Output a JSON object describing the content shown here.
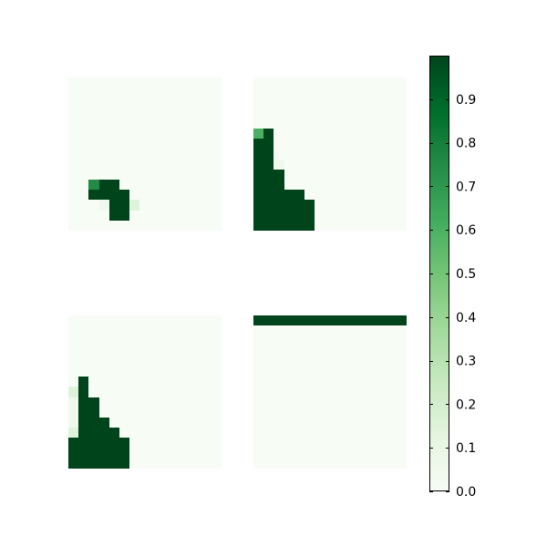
{
  "chart_data": {
    "type": "heatmap",
    "grid_size": 15,
    "colormap": "Greens",
    "colorbar": {
      "vmin": 0.0,
      "vmax": 1.0,
      "tick_values": [
        0.0,
        0.1,
        0.2,
        0.3,
        0.4,
        0.5,
        0.6,
        0.7,
        0.8,
        0.9
      ],
      "tick_labels": [
        "0.0",
        "0.1",
        "0.2",
        "0.3",
        "0.4",
        "0.5",
        "0.6",
        "0.7",
        "0.8",
        "0.9"
      ]
    },
    "panels": [
      {
        "name": "top-left",
        "cells": [
          {
            "row": 10,
            "col": 2,
            "value": 0.75
          },
          {
            "row": 10,
            "col": 3,
            "value": 1.0
          },
          {
            "row": 10,
            "col": 4,
            "value": 1.0
          },
          {
            "row": 11,
            "col": 2,
            "value": 1.0
          },
          {
            "row": 11,
            "col": 3,
            "value": 1.0
          },
          {
            "row": 11,
            "col": 4,
            "value": 1.0
          },
          {
            "row": 11,
            "col": 5,
            "value": 1.0
          },
          {
            "row": 12,
            "col": 3,
            "value": 0.05
          },
          {
            "row": 12,
            "col": 4,
            "value": 1.0
          },
          {
            "row": 12,
            "col": 5,
            "value": 1.0
          },
          {
            "row": 12,
            "col": 6,
            "value": 0.15
          },
          {
            "row": 13,
            "col": 4,
            "value": 1.0
          },
          {
            "row": 13,
            "col": 5,
            "value": 1.0
          }
        ]
      },
      {
        "name": "top-right",
        "cells": [
          {
            "row": 5,
            "col": 0,
            "value": 0.6
          },
          {
            "row": 5,
            "col": 1,
            "value": 1.0
          },
          {
            "row": 6,
            "col": 0,
            "value": 1.0
          },
          {
            "row": 6,
            "col": 1,
            "value": 1.0
          },
          {
            "row": 7,
            "col": 0,
            "value": 1.0
          },
          {
            "row": 7,
            "col": 1,
            "value": 1.0
          },
          {
            "row": 8,
            "col": 0,
            "value": 1.0
          },
          {
            "row": 8,
            "col": 1,
            "value": 1.0
          },
          {
            "row": 8,
            "col": 2,
            "value": 0.05
          },
          {
            "row": 9,
            "col": 0,
            "value": 1.0
          },
          {
            "row": 9,
            "col": 1,
            "value": 1.0
          },
          {
            "row": 9,
            "col": 2,
            "value": 1.0
          },
          {
            "row": 10,
            "col": 0,
            "value": 1.0
          },
          {
            "row": 10,
            "col": 1,
            "value": 1.0
          },
          {
            "row": 10,
            "col": 2,
            "value": 1.0
          },
          {
            "row": 11,
            "col": 0,
            "value": 1.0
          },
          {
            "row": 11,
            "col": 1,
            "value": 1.0
          },
          {
            "row": 11,
            "col": 2,
            "value": 1.0
          },
          {
            "row": 11,
            "col": 3,
            "value": 1.0
          },
          {
            "row": 11,
            "col": 4,
            "value": 1.0
          },
          {
            "row": 12,
            "col": 0,
            "value": 1.0
          },
          {
            "row": 12,
            "col": 1,
            "value": 1.0
          },
          {
            "row": 12,
            "col": 2,
            "value": 1.0
          },
          {
            "row": 12,
            "col": 3,
            "value": 1.0
          },
          {
            "row": 12,
            "col": 4,
            "value": 1.0
          },
          {
            "row": 12,
            "col": 5,
            "value": 1.0
          },
          {
            "row": 13,
            "col": 0,
            "value": 1.0
          },
          {
            "row": 13,
            "col": 1,
            "value": 1.0
          },
          {
            "row": 13,
            "col": 2,
            "value": 1.0
          },
          {
            "row": 13,
            "col": 3,
            "value": 1.0
          },
          {
            "row": 13,
            "col": 4,
            "value": 1.0
          },
          {
            "row": 13,
            "col": 5,
            "value": 1.0
          },
          {
            "row": 14,
            "col": 0,
            "value": 1.0
          },
          {
            "row": 14,
            "col": 1,
            "value": 1.0
          },
          {
            "row": 14,
            "col": 2,
            "value": 1.0
          },
          {
            "row": 14,
            "col": 3,
            "value": 1.0
          },
          {
            "row": 14,
            "col": 4,
            "value": 1.0
          },
          {
            "row": 14,
            "col": 5,
            "value": 1.0
          }
        ]
      },
      {
        "name": "bottom-left",
        "cells": [
          {
            "row": 6,
            "col": 1,
            "value": 1.0
          },
          {
            "row": 7,
            "col": 0,
            "value": 0.15
          },
          {
            "row": 7,
            "col": 1,
            "value": 1.0
          },
          {
            "row": 8,
            "col": 0,
            "value": 0.05
          },
          {
            "row": 8,
            "col": 1,
            "value": 1.0
          },
          {
            "row": 8,
            "col": 2,
            "value": 1.0
          },
          {
            "row": 9,
            "col": 0,
            "value": 0.05
          },
          {
            "row": 9,
            "col": 1,
            "value": 1.0
          },
          {
            "row": 9,
            "col": 2,
            "value": 1.0
          },
          {
            "row": 10,
            "col": 0,
            "value": 0.05
          },
          {
            "row": 10,
            "col": 1,
            "value": 1.0
          },
          {
            "row": 10,
            "col": 2,
            "value": 1.0
          },
          {
            "row": 10,
            "col": 3,
            "value": 1.0
          },
          {
            "row": 11,
            "col": 0,
            "value": 0.15
          },
          {
            "row": 11,
            "col": 1,
            "value": 1.0
          },
          {
            "row": 11,
            "col": 2,
            "value": 1.0
          },
          {
            "row": 11,
            "col": 3,
            "value": 1.0
          },
          {
            "row": 11,
            "col": 4,
            "value": 1.0
          },
          {
            "row": 12,
            "col": 0,
            "value": 1.0
          },
          {
            "row": 12,
            "col": 1,
            "value": 1.0
          },
          {
            "row": 12,
            "col": 2,
            "value": 1.0
          },
          {
            "row": 12,
            "col": 3,
            "value": 1.0
          },
          {
            "row": 12,
            "col": 4,
            "value": 1.0
          },
          {
            "row": 12,
            "col": 5,
            "value": 1.0
          },
          {
            "row": 13,
            "col": 0,
            "value": 1.0
          },
          {
            "row": 13,
            "col": 1,
            "value": 1.0
          },
          {
            "row": 13,
            "col": 2,
            "value": 1.0
          },
          {
            "row": 13,
            "col": 3,
            "value": 1.0
          },
          {
            "row": 13,
            "col": 4,
            "value": 1.0
          },
          {
            "row": 13,
            "col": 5,
            "value": 1.0
          },
          {
            "row": 14,
            "col": 0,
            "value": 1.0
          },
          {
            "row": 14,
            "col": 1,
            "value": 1.0
          },
          {
            "row": 14,
            "col": 2,
            "value": 1.0
          },
          {
            "row": 14,
            "col": 3,
            "value": 1.0
          },
          {
            "row": 14,
            "col": 4,
            "value": 1.0
          },
          {
            "row": 14,
            "col": 5,
            "value": 1.0
          }
        ]
      },
      {
        "name": "bottom-right",
        "cells": [
          {
            "row": 0,
            "col": 0,
            "value": 1.0
          },
          {
            "row": 0,
            "col": 1,
            "value": 1.0
          },
          {
            "row": 0,
            "col": 2,
            "value": 1.0
          },
          {
            "row": 0,
            "col": 3,
            "value": 1.0
          },
          {
            "row": 0,
            "col": 4,
            "value": 1.0
          },
          {
            "row": 0,
            "col": 5,
            "value": 1.0
          },
          {
            "row": 0,
            "col": 6,
            "value": 1.0
          },
          {
            "row": 0,
            "col": 7,
            "value": 1.0
          },
          {
            "row": 0,
            "col": 8,
            "value": 1.0
          },
          {
            "row": 0,
            "col": 9,
            "value": 1.0
          },
          {
            "row": 0,
            "col": 10,
            "value": 1.0
          },
          {
            "row": 0,
            "col": 11,
            "value": 1.0
          },
          {
            "row": 0,
            "col": 12,
            "value": 1.0
          },
          {
            "row": 0,
            "col": 13,
            "value": 1.0
          },
          {
            "row": 0,
            "col": 14,
            "value": 1.0
          }
        ]
      }
    ]
  }
}
